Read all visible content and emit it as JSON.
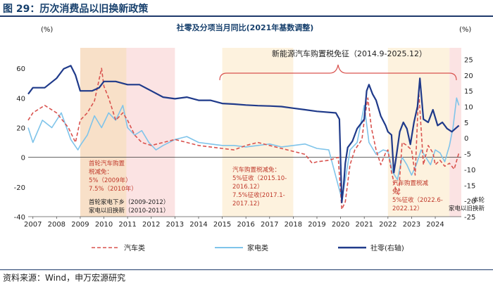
{
  "figure_title": "图 29：历次消费品以旧换新政策",
  "source": "资料来源：Wind，申万宏源研究",
  "chart_data": {
    "type": "line",
    "title": "社零及分项当月同比(2021年基数调整)",
    "left_unit": "(%)",
    "right_unit": "(%)",
    "x_range": [
      2006.8,
      2025.1
    ],
    "ylim_left": [
      -40,
      70
    ],
    "ylim_right": [
      -25,
      26.9
    ],
    "left_ticks": [
      60,
      40,
      20,
      0,
      -20,
      -40
    ],
    "right_ticks": [
      25,
      20,
      15,
      10,
      5,
      0,
      -5,
      -10,
      -15,
      -20,
      -25
    ],
    "x_ticks": [
      "2007",
      "2008",
      "2009",
      "2010",
      "2011",
      "2012",
      "2013",
      "2014",
      "2015",
      "2016",
      "2017",
      "2018",
      "2019",
      "2020",
      "2021",
      "2022",
      "2023",
      "2024"
    ],
    "legend": [
      "汽车类",
      "家电类",
      "社零(右轴)"
    ],
    "series": [
      {
        "name": "社零(右轴)",
        "axis": "right",
        "color": "#1f3a8a",
        "x": [
          2006.8,
          2007.0,
          2007.5,
          2008.0,
          2008.3,
          2008.6,
          2008.8,
          2009.0,
          2009.2,
          2009.5,
          2009.8,
          2010.0,
          2010.5,
          2011.0,
          2011.5,
          2012.0,
          2012.5,
          2013.0,
          2013.5,
          2014.0,
          2014.5,
          2015.0,
          2015.5,
          2016.0,
          2016.5,
          2017.0,
          2017.5,
          2018.0,
          2018.5,
          2019.0,
          2019.8,
          2019.95,
          2020.05,
          2020.12,
          2020.2,
          2020.3,
          2020.5,
          2020.7,
          2020.9,
          2021.0,
          2021.1,
          2021.2,
          2021.35,
          2021.5,
          2021.7,
          2021.9,
          2022.0,
          2022.15,
          2022.25,
          2022.35,
          2022.5,
          2022.65,
          2022.8,
          2022.95,
          2023.1,
          2023.25,
          2023.35,
          2023.5,
          2023.7,
          2023.9,
          2024.1,
          2024.3,
          2024.5,
          2024.7,
          2024.85,
          2025.0
        ],
        "y": [
          14,
          16,
          16,
          19,
          22,
          23,
          20,
          15,
          15,
          15,
          16,
          18,
          18,
          17,
          17,
          15,
          13,
          12.5,
          13,
          12,
          12,
          11,
          10.8,
          10.5,
          10.3,
          10.2,
          10,
          9.5,
          9,
          8.5,
          8,
          6,
          -20.5,
          -16,
          -8,
          -3,
          -1,
          3,
          5,
          6,
          15,
          17,
          14,
          12,
          7,
          4,
          2,
          1,
          -11,
          -6,
          2,
          5,
          3,
          -2,
          5,
          10,
          19,
          6,
          5,
          9,
          4,
          5,
          3,
          2,
          3,
          4
        ]
      },
      {
        "name": "汽车类",
        "axis": "left",
        "color": "#d9534f",
        "x": [
          2006.8,
          2007.0,
          2007.5,
          2008.0,
          2008.5,
          2008.8,
          2009.0,
          2009.3,
          2009.6,
          2009.9,
          2010.0,
          2010.2,
          2010.5,
          2010.8,
          2011.0,
          2011.3,
          2011.6,
          2012.0,
          2012.5,
          2013.0,
          2013.5,
          2014.0,
          2014.5,
          2015.0,
          2015.5,
          2016.0,
          2016.5,
          2017.0,
          2017.5,
          2018.0,
          2018.5,
          2018.8,
          2019.0,
          2019.5,
          2019.9,
          2020.05,
          2020.2,
          2020.4,
          2020.6,
          2020.9,
          2021.0,
          2021.15,
          2021.3,
          2021.5,
          2021.7,
          2021.9,
          2022.0,
          2022.15,
          2022.3,
          2022.45,
          2022.6,
          2022.8,
          2023.0,
          2023.15,
          2023.3,
          2023.5,
          2023.7,
          2023.9,
          2024.0,
          2024.2,
          2024.4,
          2024.6,
          2024.8,
          2025.0
        ],
        "y": [
          25,
          30,
          35,
          30,
          20,
          10,
          25,
          30,
          38,
          60,
          48,
          40,
          25,
          30,
          25,
          15,
          10,
          8,
          10,
          12,
          10,
          8,
          7,
          6,
          5,
          8,
          10,
          8,
          6,
          4,
          2,
          -4,
          -3,
          -2,
          0,
          -35,
          -30,
          -5,
          5,
          12,
          25,
          40,
          20,
          5,
          -5,
          3,
          5,
          -10,
          -20,
          -25,
          10,
          8,
          5,
          -12,
          45,
          -5,
          8,
          3,
          -5,
          -2,
          -6,
          -4,
          -8,
          3
        ]
      },
      {
        "name": "家电类",
        "axis": "left",
        "color": "#7fc4ea",
        "x": [
          2006.8,
          2007.0,
          2007.4,
          2007.8,
          2008.2,
          2008.6,
          2008.9,
          2009.0,
          2009.3,
          2009.6,
          2009.9,
          2010.2,
          2010.5,
          2010.8,
          2011.0,
          2011.3,
          2011.6,
          2011.9,
          2012.2,
          2012.5,
          2013.0,
          2013.5,
          2014.0,
          2014.5,
          2015.0,
          2015.5,
          2016.0,
          2016.5,
          2017.0,
          2017.5,
          2018.0,
          2018.5,
          2019.0,
          2019.5,
          2020.05,
          2020.2,
          2020.4,
          2020.7,
          2021.0,
          2021.2,
          2021.5,
          2021.8,
          2022.0,
          2022.2,
          2022.4,
          2022.6,
          2022.8,
          2023.0,
          2023.2,
          2023.4,
          2023.6,
          2023.8,
          2024.0,
          2024.2,
          2024.4,
          2024.6,
          2024.75,
          2024.9,
          2025.0
        ],
        "y": [
          20,
          10,
          25,
          20,
          30,
          12,
          5,
          8,
          15,
          28,
          20,
          30,
          25,
          35,
          20,
          15,
          18,
          10,
          5,
          8,
          12,
          14,
          10,
          9,
          8,
          8,
          7,
          8,
          9,
          7,
          8,
          9,
          6,
          5,
          -28,
          -15,
          5,
          10,
          35,
          10,
          2,
          5,
          4,
          -10,
          -15,
          0,
          -5,
          -12,
          -5,
          5,
          0,
          -5,
          5,
          3,
          -3,
          8,
          20,
          40,
          35
        ]
      }
    ],
    "shaded_regions": [
      {
        "from": 2009.0,
        "to": 2010.95,
        "color": "#f8e0c8"
      },
      {
        "from": 2010.95,
        "to": 2013.0,
        "color": "#fbe3e3"
      },
      {
        "from": 2015.0,
        "to": 2018.0,
        "color": "#fdf2de"
      },
      {
        "from": 2022.0,
        "to": 2024.6,
        "color": "#fdf2de"
      },
      {
        "from": 2024.6,
        "to": 2025.1,
        "color": "#fbe3e3"
      }
    ],
    "brace_label": "新能源汽车购置税免征（2014.9-2025.12）",
    "annotations": {
      "a1": [
        "首轮汽车购置",
        "税减免：",
        "5%（2009年）",
        "7.5%（2010年）"
      ],
      "a2": [
        "首轮家电下乡（2009-2012）",
        "家电以旧换新（2010-2011）"
      ],
      "a3": [
        "汽车购置税减免：",
        "5%征收（2015.10-",
        "2016.12）",
        "7.5%征收(2017.1-",
        "2017.12)"
      ],
      "a4": [
        "汽车购置税减",
        "免：",
        "5%征收（2022.6-",
        "2022.12）"
      ],
      "a5": [
        "本轮",
        "家电以旧换新"
      ]
    }
  }
}
